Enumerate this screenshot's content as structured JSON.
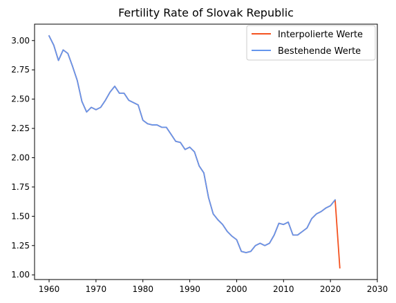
{
  "chart_data": {
    "type": "line",
    "title": "Fertility Rate of Slovak Republic",
    "xlabel": "",
    "ylabel": "",
    "xlim": [
      1956875,
      2030
    ],
    "ylim": [
      0.96,
      3.14
    ],
    "xticks": [
      1960,
      1970,
      1980,
      1990,
      2000,
      2010,
      2020,
      2030
    ],
    "xtick_labels": [
      "1960",
      "1970",
      "1980",
      "1990",
      "2000",
      "2010",
      "2020",
      "2030"
    ],
    "yticks": [
      1.0,
      1.25,
      1.5,
      1.75,
      2.0,
      2.25,
      2.5,
      2.75,
      3.0
    ],
    "ytick_labels": [
      "1.00",
      "1.25",
      "1.50",
      "1.75",
      "2.00",
      "2.25",
      "2.50",
      "2.75",
      "3.00"
    ],
    "grid": false,
    "legend_position": "top-right",
    "series": [
      {
        "name": "Interpolierte Werte",
        "color": "#f4511e",
        "x": [
          1960,
          1961,
          1962,
          1963,
          1964,
          1965,
          1966,
          1967,
          1968,
          1969,
          1970,
          1971,
          1972,
          1973,
          1974,
          1975,
          1976,
          1977,
          1978,
          1979,
          1980,
          1981,
          1982,
          1983,
          1984,
          1985,
          1986,
          1987,
          1988,
          1989,
          1990,
          1991,
          1992,
          1993,
          1994,
          1995,
          1996,
          1997,
          1998,
          1999,
          2000,
          2001,
          2002,
          2003,
          2004,
          2005,
          2006,
          2007,
          2008,
          2009,
          2010,
          2011,
          2012,
          2013,
          2014,
          2015,
          2016,
          2017,
          2018,
          2019,
          2020,
          2021,
          2022
        ],
        "y": [
          3.04,
          2.96,
          2.83,
          2.92,
          2.89,
          2.78,
          2.66,
          2.48,
          2.39,
          2.43,
          2.41,
          2.43,
          2.49,
          2.56,
          2.61,
          2.55,
          2.55,
          2.49,
          2.47,
          2.45,
          2.32,
          2.29,
          2.28,
          2.28,
          2.26,
          2.26,
          2.2,
          2.14,
          2.13,
          2.07,
          2.09,
          2.05,
          1.93,
          1.87,
          1.66,
          1.52,
          1.47,
          1.43,
          1.37,
          1.33,
          1.3,
          1.2,
          1.19,
          1.2,
          1.25,
          1.27,
          1.25,
          1.27,
          1.34,
          1.44,
          1.43,
          1.45,
          1.34,
          1.34,
          1.37,
          1.4,
          1.48,
          1.52,
          1.54,
          1.57,
          1.59,
          1.64,
          1.06
        ]
      },
      {
        "name": "Bestehende Werte",
        "color": "#6495ed",
        "x": [
          1960,
          1961,
          1962,
          1963,
          1964,
          1965,
          1966,
          1967,
          1968,
          1969,
          1970,
          1971,
          1972,
          1973,
          1974,
          1975,
          1976,
          1977,
          1978,
          1979,
          1980,
          1981,
          1982,
          1983,
          1984,
          1985,
          1986,
          1987,
          1988,
          1989,
          1990,
          1991,
          1992,
          1993,
          1994,
          1995,
          1996,
          1997,
          1998,
          1999,
          2000,
          2001,
          2002,
          2003,
          2004,
          2005,
          2006,
          2007,
          2008,
          2009,
          2010,
          2011,
          2012,
          2013,
          2014,
          2015,
          2016,
          2017,
          2018,
          2019,
          2020,
          2021
        ],
        "y": [
          3.04,
          2.96,
          2.83,
          2.92,
          2.89,
          2.78,
          2.66,
          2.48,
          2.39,
          2.43,
          2.41,
          2.43,
          2.49,
          2.56,
          2.61,
          2.55,
          2.55,
          2.49,
          2.47,
          2.45,
          2.32,
          2.29,
          2.28,
          2.28,
          2.26,
          2.26,
          2.2,
          2.14,
          2.13,
          2.07,
          2.09,
          2.05,
          1.93,
          1.87,
          1.66,
          1.52,
          1.47,
          1.43,
          1.37,
          1.33,
          1.3,
          1.2,
          1.19,
          1.2,
          1.25,
          1.27,
          1.25,
          1.27,
          1.34,
          1.44,
          1.43,
          1.45,
          1.34,
          1.34,
          1.37,
          1.4,
          1.48,
          1.52,
          1.54,
          1.57,
          1.59,
          1.64
        ]
      }
    ]
  }
}
